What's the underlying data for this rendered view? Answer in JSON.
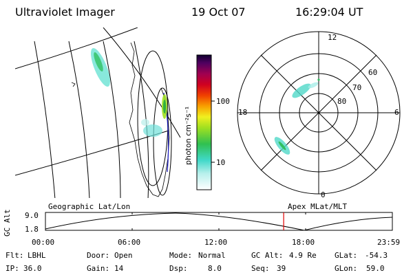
{
  "header": {
    "instrument": "Ultraviolet Imager",
    "date": "19 Oct 07",
    "time": "16:29:04 UT"
  },
  "colorbar": {
    "unit_label": "photon cm⁻²s⁻¹",
    "tick_100": "100",
    "tick_10": "10"
  },
  "polar": {
    "mlt_top": "12",
    "mlt_left": "18",
    "mlt_right": "6",
    "mlt_bottom": "0",
    "lat_60": "60",
    "lat_70": "70",
    "lat_80": "80"
  },
  "timeline": {
    "left_label": "Geographic Lat/Lon",
    "right_label": "Apex MLat/MLT",
    "axis_label": "GC Alt",
    "y_max": "9.0",
    "y_min": "1.8",
    "ticks": [
      "00:00",
      "06:00",
      "12:00",
      "18:00",
      "23:59"
    ],
    "current_time_fraction": 0.6868
  },
  "info": {
    "filter_label": "Flt:",
    "filter_value": "LBHL",
    "door_label": "Door:",
    "door_value": "Open",
    "mode_label": "Mode:",
    "mode_value": "Normal",
    "gcalt_label": "GC Alt:",
    "gcalt_value": "4.9 Re",
    "glat_label": "GLat:",
    "glat_value": "-54.3",
    "ip_label": "IP:",
    "ip_value": "36.0",
    "gain_label": "Gain:",
    "gain_value": "14",
    "dsp_label": "Dsp:",
    "dsp_value": "8.0",
    "seq_label": "Seq:",
    "seq_value": "39",
    "glon_label": "GLon:",
    "glon_value": "59.0"
  },
  "colors": {
    "current_time_marker": "#e00000",
    "aurora_low": "#40d8c8",
    "aurora_mid": "#30c060",
    "aurora_high": "#c0e020"
  }
}
